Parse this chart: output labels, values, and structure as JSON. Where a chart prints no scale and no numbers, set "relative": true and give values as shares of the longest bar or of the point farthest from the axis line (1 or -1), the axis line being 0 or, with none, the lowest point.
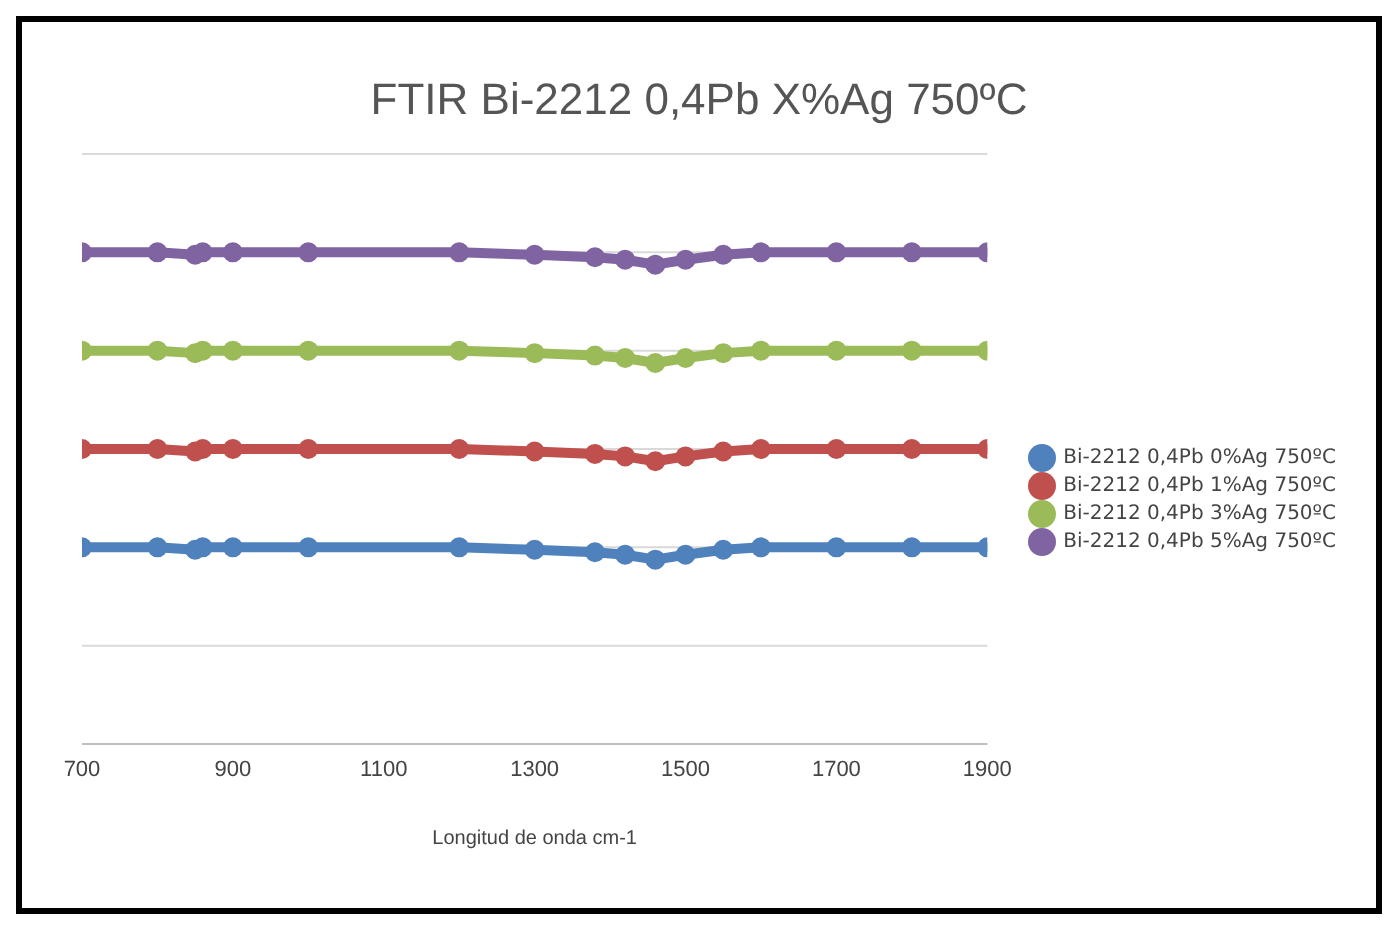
{
  "chart_data": {
    "type": "line",
    "title": "FTIR Bi-2212 0,4Pb X%Ag 750ºC",
    "xlabel": "Longitud de onda cm-1",
    "relative": true,
    "grid": "y",
    "legend": "right",
    "marker": "circle",
    "line_style": "solid",
    "x": [
      700,
      800,
      850,
      860,
      900,
      1000,
      1200,
      1300,
      1380,
      1420,
      1460,
      1500,
      1550,
      1600,
      1700,
      1800,
      1900
    ],
    "xlim": [
      700,
      1900
    ],
    "xticks": [
      700,
      900,
      1100,
      1300,
      1500,
      1700,
      1900
    ],
    "series": [
      {
        "name": "Bi-2212 0,4Pb 0%Ag 750ºC",
        "color": "#4f81bd",
        "values": [
          0.4,
          0.4,
          0.395,
          0.4,
          0.4,
          0.4,
          0.4,
          0.395,
          0.39,
          0.385,
          0.375,
          0.385,
          0.395,
          0.4,
          0.4,
          0.4,
          0.4
        ]
      },
      {
        "name": "Bi-2212 0,4Pb 1%Ag 750ºC",
        "color": "#c0504d",
        "values": [
          0.6,
          0.6,
          0.595,
          0.6,
          0.6,
          0.6,
          0.6,
          0.595,
          0.59,
          0.585,
          0.575,
          0.585,
          0.595,
          0.6,
          0.6,
          0.6,
          0.6
        ]
      },
      {
        "name": "Bi-2212 0,4Pb 3%Ag 750ºC",
        "color": "#9bbb59",
        "values": [
          0.8,
          0.8,
          0.795,
          0.8,
          0.8,
          0.8,
          0.8,
          0.795,
          0.79,
          0.785,
          0.775,
          0.785,
          0.795,
          0.8,
          0.8,
          0.8,
          0.8
        ]
      },
      {
        "name": "Bi-2212 0,4Pb 5%Ag 750ºC",
        "color": "#8064a2",
        "values": [
          1,
          1,
          0.995,
          1,
          1,
          1,
          1,
          0.995,
          0.99,
          0.985,
          0.975,
          0.985,
          0.995,
          1,
          1,
          1,
          1
        ]
      }
    ]
  }
}
